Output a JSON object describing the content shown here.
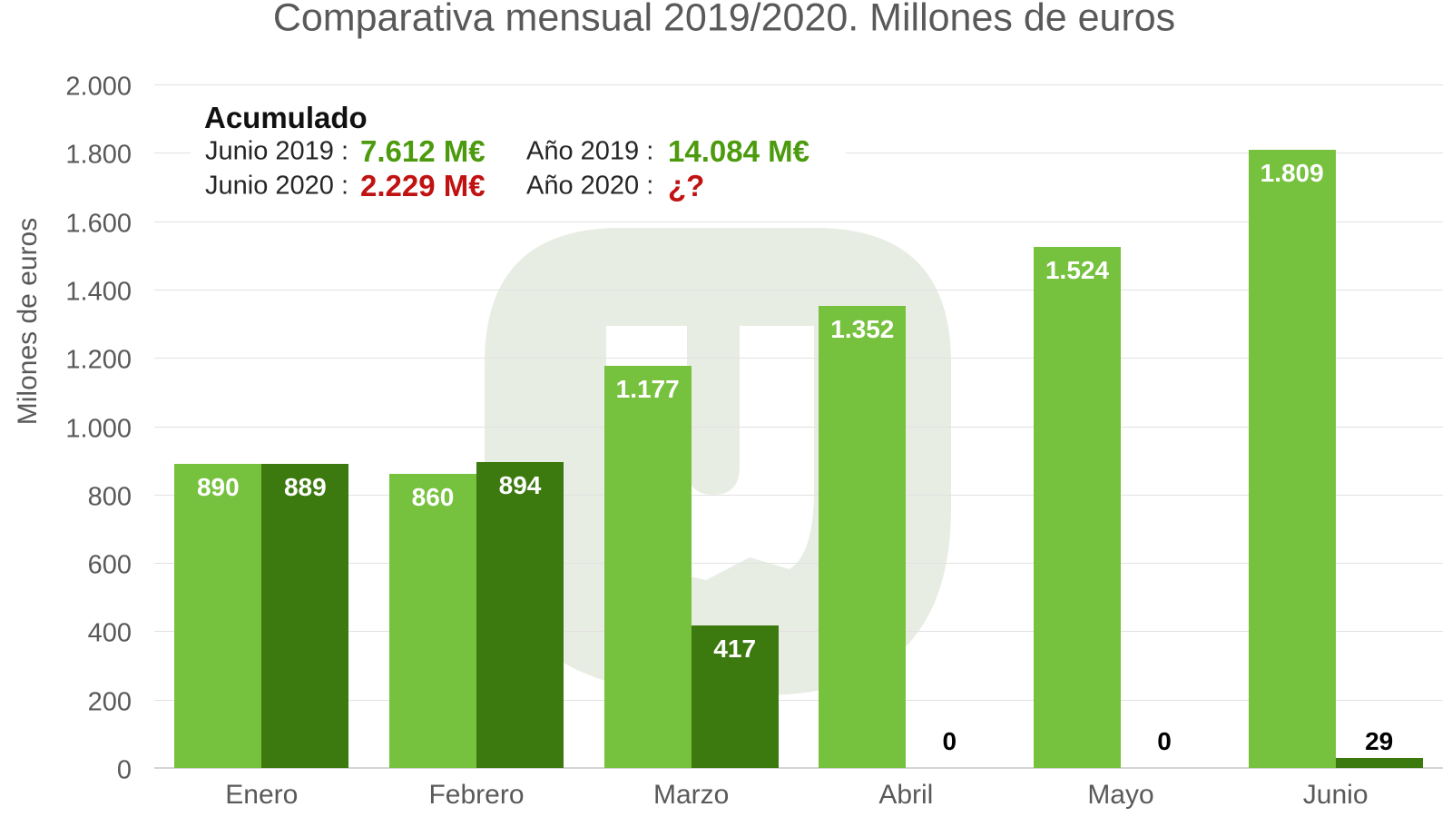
{
  "title": "Comparativa mensual 2019/2020. Millones de euros",
  "annotation": {
    "heading": "Acumulado",
    "rows": [
      {
        "label": "Junio 2019 :",
        "value": "7.612 M€",
        "value_color": "#4c9a0d"
      },
      {
        "label": "Año 2019 :",
        "value": "14.084 M€",
        "value_color": "#4c9a0d"
      },
      {
        "label": "Junio 2020 :",
        "value": "2.229 M€",
        "value_color": "#c11212"
      },
      {
        "label": "Año 2020 :",
        "value": "¿?",
        "value_color": "#c11212"
      }
    ]
  },
  "chart_data": {
    "type": "bar",
    "title": "Comparativa mensual 2019/2020. Millones de euros",
    "xlabel": "",
    "ylabel": "Milones de euros",
    "ylim": [
      0,
      2000
    ],
    "grid": true,
    "legend": "none",
    "categories": [
      "Enero",
      "Febrero",
      "Marzo",
      "Abril",
      "Mayo",
      "Junio"
    ],
    "series": [
      {
        "name": "2019",
        "color": "#76c13e",
        "values": [
          890,
          860,
          1177,
          1352,
          1524,
          1809
        ],
        "labels": [
          "890",
          "860",
          "1.177",
          "1.352",
          "1.524",
          "1.809"
        ]
      },
      {
        "name": "2020",
        "color": "#3c7a0f",
        "values": [
          889,
          894,
          417,
          0,
          0,
          29
        ],
        "labels": [
          "889",
          "894",
          "417",
          "0",
          "0",
          "29"
        ]
      }
    ],
    "yticks": [
      {
        "value": 0,
        "label": "0"
      },
      {
        "value": 200,
        "label": "200"
      },
      {
        "value": 400,
        "label": "400"
      },
      {
        "value": 600,
        "label": "600"
      },
      {
        "value": 800,
        "label": "800"
      },
      {
        "value": 1000,
        "label": "1.000"
      },
      {
        "value": 1200,
        "label": "1.200"
      },
      {
        "value": 1400,
        "label": "1.400"
      },
      {
        "value": 1600,
        "label": "1.600"
      },
      {
        "value": 1800,
        "label": "1.800"
      },
      {
        "value": 2000,
        "label": "2.000"
      }
    ]
  },
  "colors": {
    "background": "#ffffff",
    "gridline": "#e2e2e2",
    "axis_line": "#d5d5d5",
    "axis_text": "#595959",
    "title_text": "#595959",
    "bar_2019": "#76c13e",
    "bar_2020": "#3c7a0f",
    "bar_label_inside": "#ffffff",
    "bar_label_outside": "#000000",
    "annotation_green": "#4c9a0d",
    "annotation_red": "#c11212",
    "watermark": "#e9ede3"
  }
}
